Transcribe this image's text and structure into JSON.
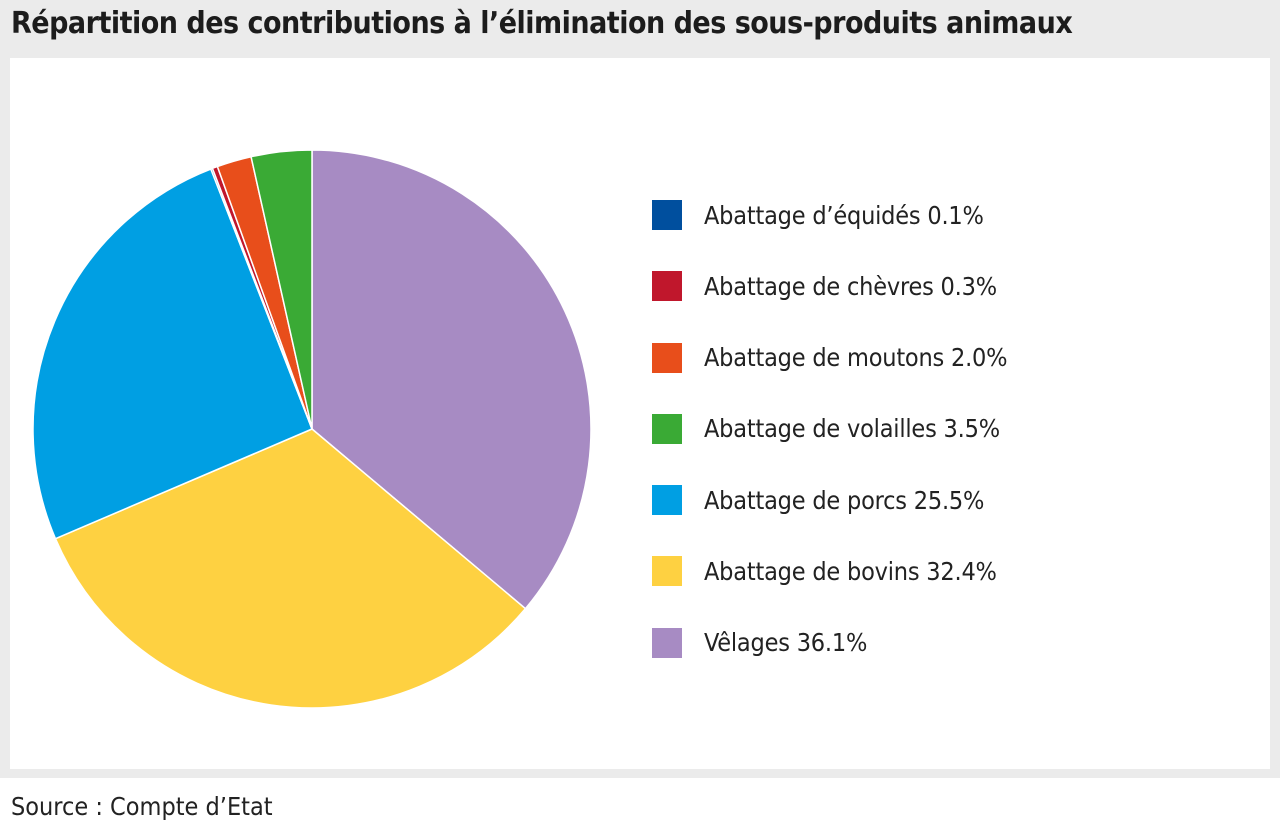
{
  "title": "Répartition des contributions à l’élimination des sous-produits animaux",
  "source": "Source : Compte d’Etat",
  "chart_data": {
    "type": "pie",
    "title": "Répartition des contributions à l’élimination des sous-produits animaux",
    "slices": [
      {
        "label": "Abattage d’équidés",
        "value": 0.1,
        "display": "0.1%",
        "color": "#004f9e"
      },
      {
        "label": "Abattage de chèvres",
        "value": 0.3,
        "display": "0.3%",
        "color": "#c0172c"
      },
      {
        "label": "Abattage de moutons",
        "value": 2.0,
        "display": "2.0%",
        "color": "#e84e1b"
      },
      {
        "label": "Abattage de volailles",
        "value": 3.5,
        "display": "3.5%",
        "color": "#3aaa35"
      },
      {
        "label": "Abattage de porcs",
        "value": 25.5,
        "display": "25.5%",
        "color": "#009fe3"
      },
      {
        "label": "Abattage de bovins",
        "value": 32.4,
        "display": "32.4%",
        "color": "#fed141"
      },
      {
        "label": "Vêlages",
        "value": 36.1,
        "display": "36.1%",
        "color": "#a78bc3"
      }
    ],
    "drawing_order": [
      "Vêlages",
      "Abattage de bovins",
      "Abattage de porcs",
      "Abattage d’équidés",
      "Abattage de chèvres",
      "Abattage de moutons",
      "Abattage de volailles"
    ],
    "start_angle_deg": 0,
    "direction": "clockwise",
    "legend_position": "right"
  }
}
